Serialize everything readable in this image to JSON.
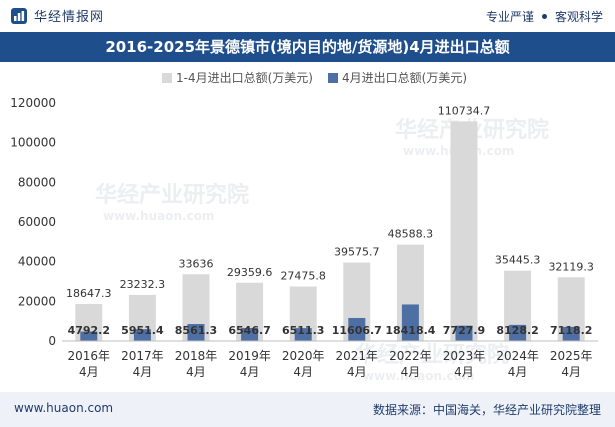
{
  "header": {
    "brand_name": "华经情报网",
    "tagline_left": "专业严谨",
    "tagline_right": "客观科学"
  },
  "footer": {
    "website": "www.huaon.com",
    "source": "数据来源：中国海关，华经产业研究院整理"
  },
  "watermark": {
    "cn": "华经产业研究院",
    "en": "www.huaon.com"
  },
  "colors": {
    "title_bg": "#1f4e8c",
    "series1": "#d9d9d9",
    "series2": "#4e6fa3"
  },
  "chart_data": {
    "type": "bar",
    "title": "2016-2025年景德镇市(境内目的地/货源地)4月进出口总额",
    "categories": [
      [
        "2016年",
        "4月"
      ],
      [
        "2017年",
        "4月"
      ],
      [
        "2018年",
        "4月"
      ],
      [
        "2019年",
        "4月"
      ],
      [
        "2020年",
        "4月"
      ],
      [
        "2021年",
        "4月"
      ],
      [
        "2022年",
        "4月"
      ],
      [
        "2023年",
        "4月"
      ],
      [
        "2024年",
        "4月"
      ],
      [
        "2025年",
        "4月"
      ]
    ],
    "series": [
      {
        "name": "1-4月进出口总额(万美元)",
        "values": [
          18647.3,
          23232.3,
          33636,
          29359.6,
          27475.8,
          39575.7,
          48588.3,
          110734.7,
          35445.3,
          32119.3
        ],
        "labels": [
          "18647.3",
          "23232.3",
          "33636",
          "29359.6",
          "27475.8",
          "39575.7",
          "48588.3",
          "110734.7",
          "35445.3",
          "32119.3"
        ]
      },
      {
        "name": "4月进出口总额(万美元)",
        "values": [
          4792.2,
          5951.4,
          8561.3,
          6546.7,
          6511.3,
          11606.7,
          18418.4,
          7727.9,
          8128.2,
          7118.2
        ],
        "labels": [
          "4792.2",
          "5951.4",
          "8561.3",
          "6546.7",
          "6511.3",
          "11606.7",
          "18418.4",
          "7727.9",
          "8128.2",
          "7118.2"
        ]
      }
    ],
    "ylim": [
      0,
      120000
    ],
    "yticks": [
      "0",
      "20000",
      "40000",
      "60000",
      "80000",
      "100000",
      "120000"
    ],
    "grid": false,
    "legend_position": "top-center"
  }
}
